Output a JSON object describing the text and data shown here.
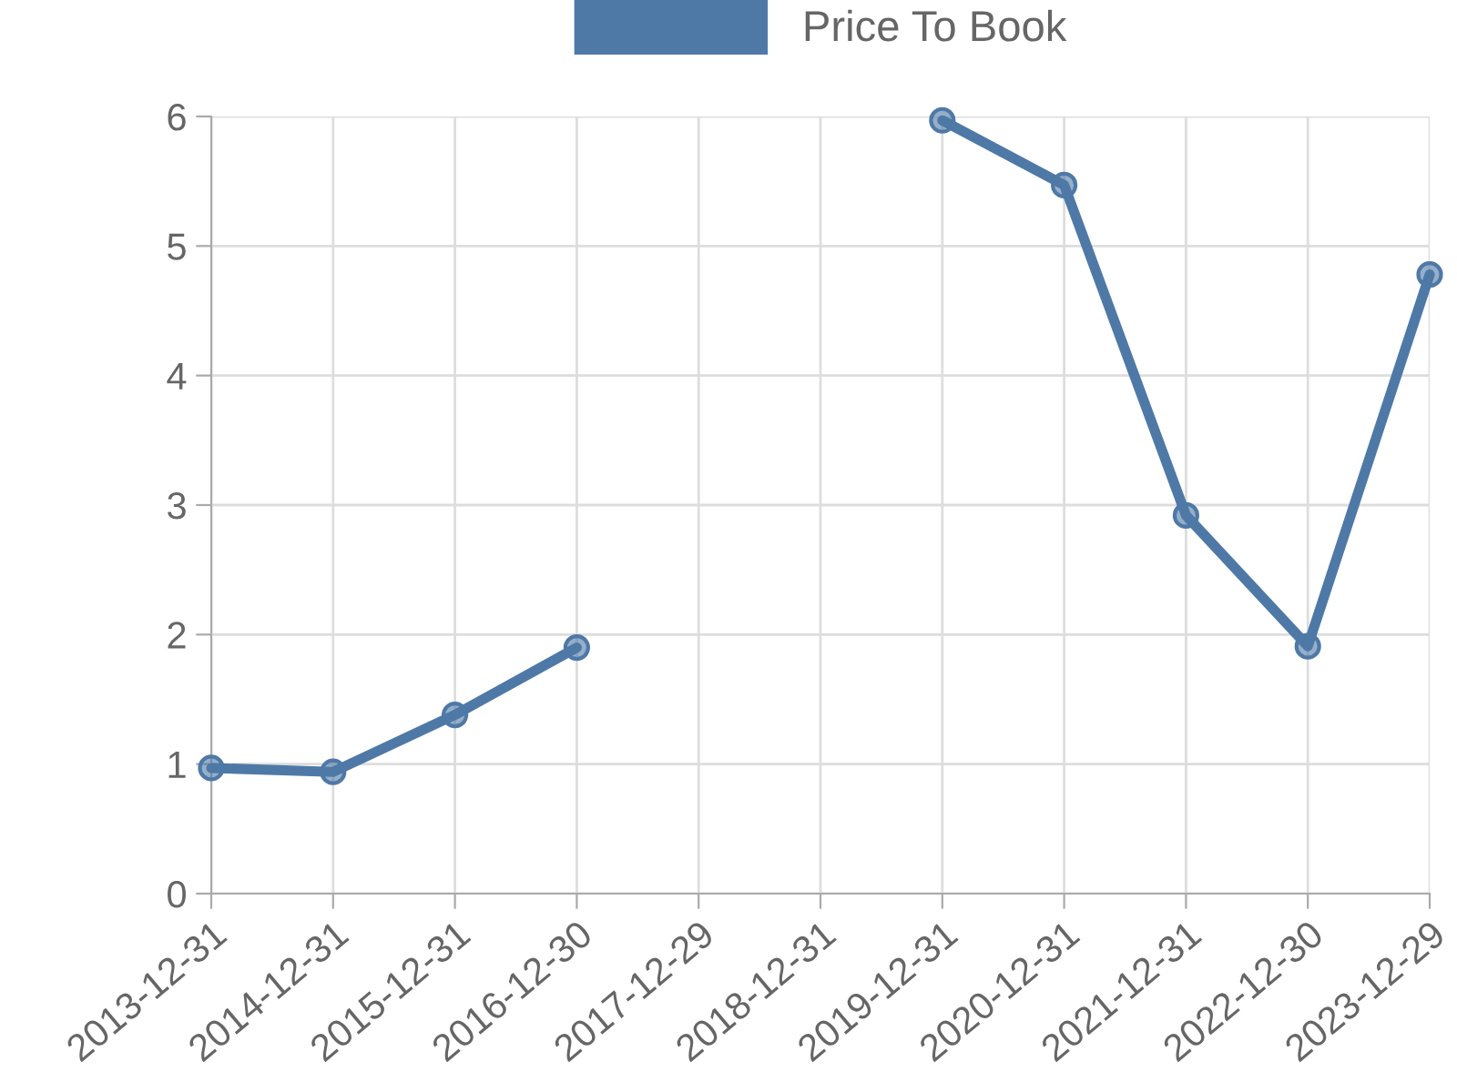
{
  "chart_data": {
    "type": "line",
    "categories": [
      "2013-12-31",
      "2014-12-31",
      "2015-12-31",
      "2016-12-30",
      "2017-12-29",
      "2018-12-31",
      "2019-12-31",
      "2020-12-31",
      "2021-12-31",
      "2022-12-30",
      "2023-12-29"
    ],
    "series": [
      {
        "name": "Price To Book",
        "color": "#4e79a7",
        "values": [
          0.97,
          0.94,
          1.38,
          1.9,
          null,
          null,
          5.97,
          5.47,
          2.92,
          1.91,
          4.78
        ]
      }
    ],
    "ylim": [
      0,
      6
    ],
    "yticks": [
      0,
      1,
      2,
      3,
      4,
      5,
      6
    ],
    "grid": true,
    "legend": "top",
    "marker": "circle",
    "line_style": "solid"
  }
}
